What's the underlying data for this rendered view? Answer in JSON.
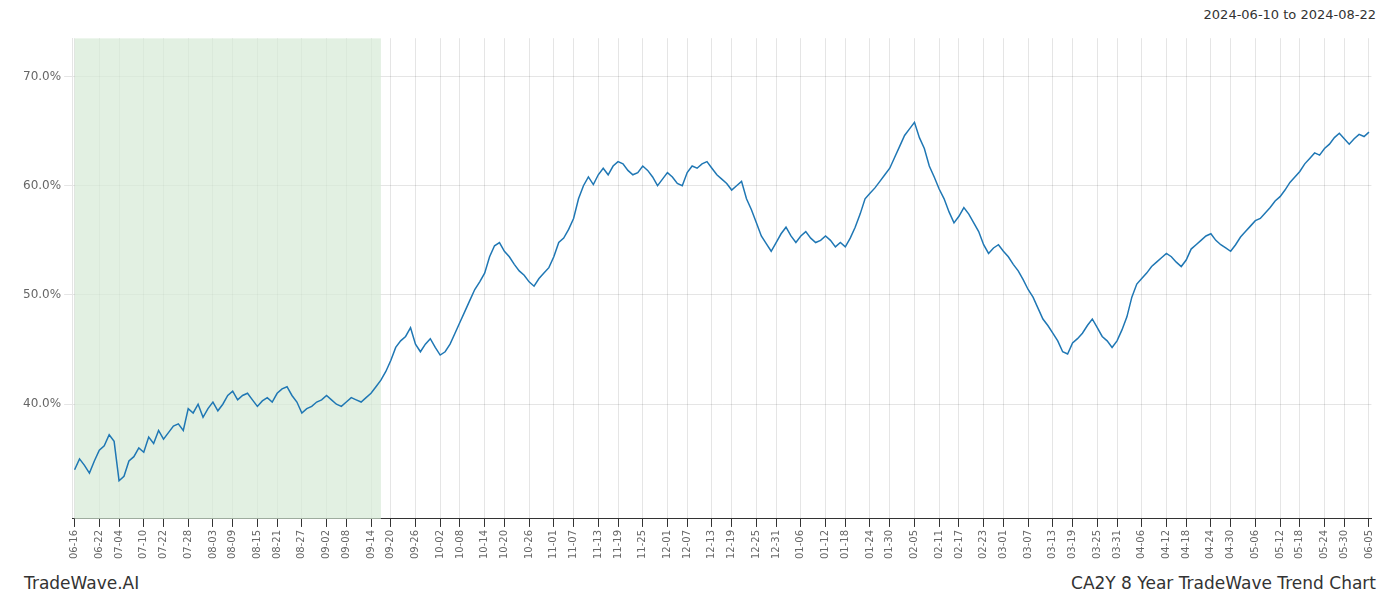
{
  "chart_data": {
    "type": "line",
    "categories": [
      "06-16",
      null,
      null,
      null,
      null,
      "06-22",
      null,
      null,
      null,
      "07-04",
      null,
      null,
      null,
      null,
      "07-10",
      null,
      null,
      null,
      "07-22",
      null,
      null,
      null,
      null,
      "07-28",
      null,
      null,
      null,
      null,
      "08-03",
      null,
      null,
      null,
      "08-09",
      null,
      null,
      null,
      null,
      "08-15",
      null,
      null,
      null,
      "08-21",
      null,
      null,
      null,
      null,
      "08-27",
      null,
      null,
      null,
      null,
      "09-02",
      null,
      null,
      null,
      "09-08",
      null,
      null,
      null,
      null,
      "09-14",
      null,
      null,
      null,
      "09-20",
      null,
      null,
      null,
      null,
      "09-26",
      null,
      null,
      null,
      null,
      "10-02",
      null,
      null,
      null,
      "10-08",
      null,
      null,
      null,
      null,
      "10-14",
      null,
      null,
      null,
      "10-20",
      null,
      null,
      null,
      null,
      "10-26",
      null,
      null,
      null,
      null,
      "11-01",
      null,
      null,
      null,
      "11-07",
      null,
      null,
      null,
      null,
      "11-13",
      null,
      null,
      null,
      "11-19",
      null,
      null,
      null,
      null,
      "11-25",
      null,
      null,
      null,
      null,
      "12-01",
      null,
      null,
      null,
      "12-07",
      null,
      null,
      null,
      null,
      "12-13",
      null,
      null,
      null,
      "12-19",
      null,
      null,
      null,
      null,
      "12-25",
      null,
      null,
      null,
      "12-31",
      null,
      null,
      null,
      null,
      "01-06",
      null,
      null,
      null,
      null,
      "01-12",
      null,
      null,
      null,
      "01-18",
      null,
      null,
      null,
      null,
      "01-24",
      null,
      null,
      null,
      "01-30",
      null,
      null,
      null,
      null,
      "02-05",
      null,
      null,
      null,
      null,
      "02-11",
      null,
      null,
      null,
      "02-17",
      null,
      null,
      null,
      null,
      "02-23",
      null,
      null,
      null,
      "03-01",
      null,
      null,
      null,
      null,
      "03-07",
      null,
      null,
      null,
      null,
      "03-13",
      null,
      null,
      null,
      "03-19",
      null,
      null,
      null,
      null,
      "03-25",
      null,
      null,
      null,
      "03-31",
      null,
      null,
      null,
      null,
      "04-06",
      null,
      null,
      null,
      null,
      "04-12",
      null,
      null,
      null,
      "04-18",
      null,
      null,
      null,
      null,
      "04-24",
      null,
      null,
      null,
      "04-30",
      null,
      null,
      null,
      null,
      "05-06",
      null,
      null,
      null,
      null,
      "05-12",
      null,
      null,
      null,
      "05-18",
      null,
      null,
      null,
      null,
      "05-24",
      null,
      null,
      null,
      "05-30",
      null,
      null,
      null,
      null,
      "06-05"
    ],
    "values": [
      0.34,
      0.35,
      0.344,
      0.337,
      0.348,
      0.358,
      0.362,
      0.372,
      0.366,
      0.33,
      0.334,
      0.348,
      0.352,
      0.36,
      0.356,
      0.37,
      0.364,
      0.376,
      0.368,
      0.374,
      0.38,
      0.382,
      0.376,
      0.396,
      0.392,
      0.4,
      0.388,
      0.396,
      0.402,
      0.394,
      0.4,
      0.408,
      0.412,
      0.404,
      0.408,
      0.41,
      0.404,
      0.398,
      0.403,
      0.406,
      0.402,
      0.41,
      0.414,
      0.416,
      0.408,
      0.402,
      0.392,
      0.396,
      0.398,
      0.402,
      0.404,
      0.408,
      0.404,
      0.4,
      0.398,
      0.402,
      0.406,
      0.404,
      0.402,
      0.406,
      0.41,
      0.416,
      0.422,
      0.43,
      0.44,
      0.452,
      0.458,
      0.462,
      0.47,
      0.455,
      0.448,
      0.455,
      0.46,
      0.452,
      0.445,
      0.448,
      0.455,
      0.465,
      0.475,
      0.485,
      0.495,
      0.505,
      0.512,
      0.52,
      0.535,
      0.545,
      0.548,
      0.54,
      0.535,
      0.528,
      0.522,
      0.518,
      0.512,
      0.508,
      0.515,
      0.52,
      0.525,
      0.535,
      0.548,
      0.552,
      0.56,
      0.57,
      0.588,
      0.6,
      0.608,
      0.601,
      0.61,
      0.616,
      0.61,
      0.618,
      0.622,
      0.62,
      0.614,
      0.61,
      0.612,
      0.618,
      0.614,
      0.608,
      0.6,
      0.606,
      0.612,
      0.608,
      0.602,
      0.6,
      0.612,
      0.618,
      0.616,
      0.62,
      0.622,
      0.616,
      0.61,
      0.606,
      0.602,
      0.596,
      0.6,
      0.604,
      0.588,
      0.578,
      0.566,
      0.554,
      0.547,
      0.54,
      0.548,
      0.556,
      0.562,
      0.554,
      0.548,
      0.554,
      0.558,
      0.552,
      0.548,
      0.55,
      0.554,
      0.55,
      0.544,
      0.548,
      0.544,
      0.552,
      0.562,
      0.574,
      0.588,
      0.593,
      0.598,
      0.604,
      0.61,
      0.616,
      0.626,
      0.636,
      0.646,
      0.652,
      0.658,
      0.644,
      0.634,
      0.618,
      0.608,
      0.597,
      0.588,
      0.576,
      0.566,
      0.572,
      0.58,
      0.574,
      0.566,
      0.558,
      0.546,
      0.538,
      0.543,
      0.546,
      0.54,
      0.535,
      0.528,
      0.522,
      0.514,
      0.505,
      0.498,
      0.488,
      0.478,
      0.472,
      0.465,
      0.458,
      0.448,
      0.446,
      0.456,
      0.46,
      0.465,
      0.472,
      0.478,
      0.47,
      0.462,
      0.458,
      0.452,
      0.458,
      0.468,
      0.48,
      0.498,
      0.51,
      0.515,
      0.52,
      0.526,
      0.53,
      0.534,
      0.538,
      0.535,
      0.53,
      0.526,
      0.532,
      0.542,
      0.546,
      0.55,
      0.554,
      0.556,
      0.55,
      0.546,
      0.543,
      0.54,
      0.546,
      0.553,
      0.558,
      0.563,
      0.568,
      0.57,
      0.575,
      0.58,
      0.586,
      0.59,
      0.596,
      0.603,
      0.608,
      0.613,
      0.62,
      0.625,
      0.63,
      0.628,
      0.634,
      0.638,
      0.644,
      0.648,
      0.643,
      0.638,
      0.643,
      0.647,
      0.645,
      0.649
    ],
    "color": "#1f77b4",
    "ylim": [
      0.295,
      0.735
    ],
    "yticks": [
      {
        "value": 0.4,
        "label": "40.0%"
      },
      {
        "value": 0.5,
        "label": "50.0%"
      },
      {
        "value": 0.6,
        "label": "60.0%"
      },
      {
        "value": 0.7,
        "label": "70.0%"
      }
    ],
    "grid": true,
    "shade": {
      "start": 0,
      "end": 62,
      "color": "#d6ead6"
    },
    "annotations": [
      "2024-06-10 to 2024-08-22",
      "TradeWave.AI",
      "CA2Y 8 Year TradeWave Trend Chart"
    ]
  }
}
